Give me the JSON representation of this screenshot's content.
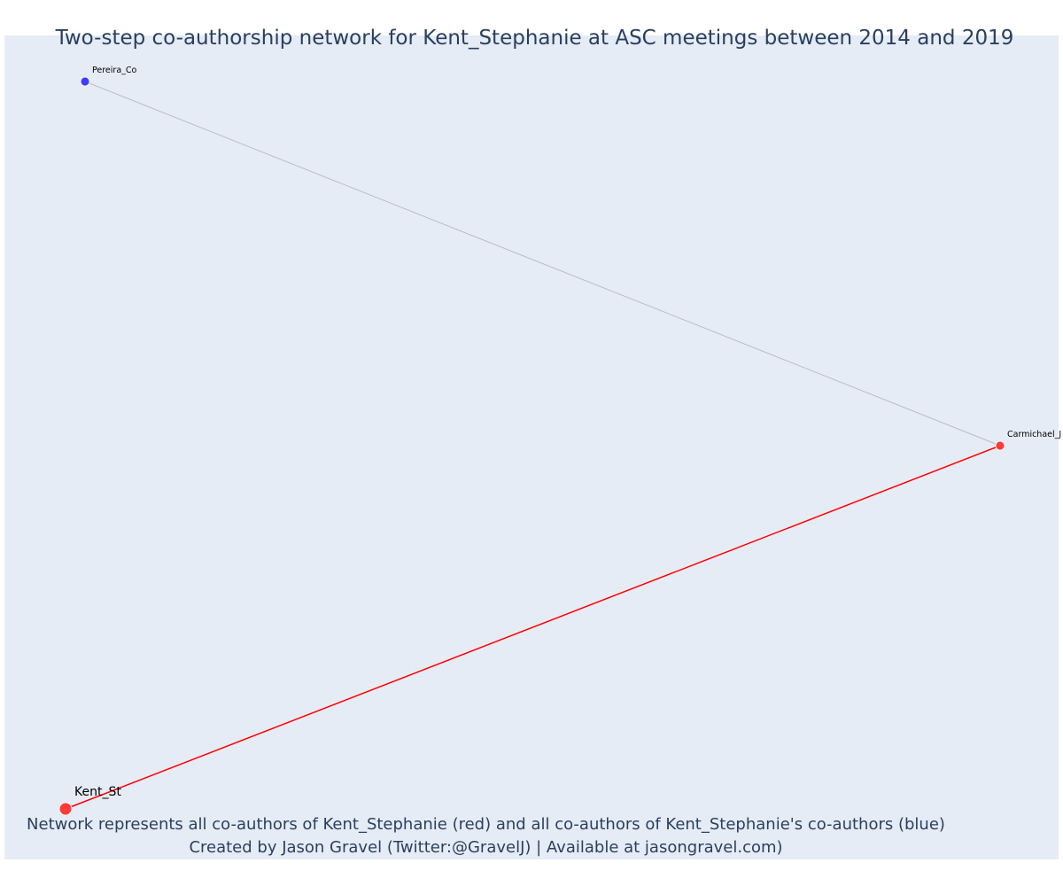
{
  "chart_data": {
    "type": "network",
    "title": "Two-step co-authorship network for Kent_Stephanie at ASC meetings between 2014 and 2019",
    "nodes": [
      {
        "id": "pereira",
        "label": "Pereira_Co",
        "group": "second-step",
        "color": "#3d3dff"
      },
      {
        "id": "carmichael",
        "label": "Carmichael_J",
        "group": "co-author",
        "color": "#ff3a3a"
      },
      {
        "id": "kent",
        "label": "Kent_St",
        "group": "focal",
        "color": "#ff3a3a"
      }
    ],
    "edges": [
      {
        "source": "pereira",
        "target": "carmichael",
        "color": "#b9bccb"
      },
      {
        "source": "kent",
        "target": "carmichael",
        "color": "#ff0000"
      }
    ],
    "background": "#e5ecf6",
    "grid": false
  },
  "caption": {
    "line1": "Network represents all co-authors of Kent_Stephanie (red) and all co-authors of Kent_Stephanie's co-authors (blue)",
    "line2": "Created by Jason Gravel (Twitter:@GravelJ) | Available at jasongravel.com)"
  }
}
